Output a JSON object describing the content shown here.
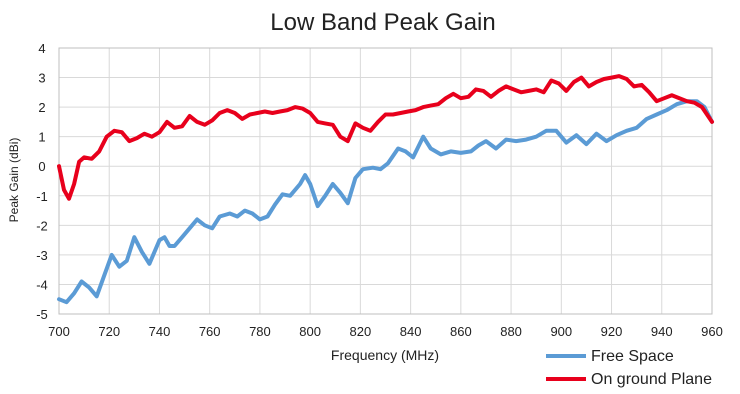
{
  "chart_data": {
    "type": "line",
    "title": "Low Band Peak Gain",
    "xlabel": "Frequency (MHz)",
    "ylabel": "Peak Gain (dBi)",
    "xlim": [
      700,
      960
    ],
    "ylim": [
      -5,
      4
    ],
    "x_ticks": [
      700,
      720,
      740,
      760,
      780,
      800,
      820,
      840,
      860,
      880,
      900,
      920,
      940,
      960
    ],
    "y_ticks": [
      4,
      3,
      2,
      1,
      0,
      -1,
      -2,
      -3,
      -4,
      -5
    ],
    "grid": true,
    "legend_position": "bottom-right",
    "series": [
      {
        "name": "Free Space",
        "color": "#5b9bd5",
        "x": [
          700,
          703,
          706,
          709,
          712,
          715,
          718,
          721,
          724,
          727,
          730,
          733,
          736,
          740,
          742,
          744,
          746,
          749,
          752,
          755,
          758,
          761,
          764,
          768,
          771,
          774,
          777,
          780,
          783,
          786,
          789,
          792,
          796,
          798,
          800,
          803,
          806,
          809,
          812,
          815,
          818,
          821,
          825,
          828,
          831,
          835,
          838,
          841,
          845,
          848,
          852,
          856,
          860,
          864,
          867,
          870,
          874,
          878,
          882,
          886,
          890,
          894,
          898,
          902,
          906,
          910,
          914,
          918,
          922,
          926,
          930,
          934,
          938,
          942,
          946,
          950,
          954,
          957,
          960
        ],
        "values": [
          -4.5,
          -4.6,
          -4.3,
          -3.9,
          -4.1,
          -4.4,
          -3.7,
          -3.0,
          -3.4,
          -3.2,
          -2.4,
          -2.9,
          -3.3,
          -2.5,
          -2.4,
          -2.7,
          -2.7,
          -2.4,
          -2.1,
          -1.8,
          -2.0,
          -2.1,
          -1.7,
          -1.6,
          -1.7,
          -1.5,
          -1.6,
          -1.8,
          -1.7,
          -1.3,
          -0.95,
          -1.0,
          -0.6,
          -0.3,
          -0.6,
          -1.35,
          -1.0,
          -0.6,
          -0.9,
          -1.25,
          -0.4,
          -0.1,
          -0.05,
          -0.1,
          0.1,
          0.6,
          0.5,
          0.3,
          1.0,
          0.6,
          0.4,
          0.5,
          0.45,
          0.5,
          0.7,
          0.85,
          0.6,
          0.9,
          0.85,
          0.9,
          1.0,
          1.2,
          1.2,
          0.8,
          1.05,
          0.75,
          1.1,
          0.85,
          1.05,
          1.2,
          1.3,
          1.6,
          1.75,
          1.9,
          2.1,
          2.2,
          2.2,
          2.0,
          1.5
        ]
      },
      {
        "name": "On ground Plane",
        "color": "#e8001c",
        "x": [
          700,
          702,
          704,
          706,
          708,
          710,
          713,
          716,
          719,
          722,
          725,
          728,
          731,
          734,
          737,
          740,
          743,
          746,
          749,
          752,
          755,
          758,
          761,
          764,
          767,
          770,
          773,
          776,
          779,
          782,
          785,
          788,
          791,
          794,
          797,
          800,
          803,
          806,
          809,
          812,
          815,
          818,
          821,
          824,
          827,
          830,
          833,
          836,
          839,
          842,
          845,
          848,
          851,
          854,
          857,
          860,
          863,
          866,
          869,
          872,
          875,
          878,
          881,
          884,
          887,
          890,
          893,
          896,
          899,
          902,
          905,
          908,
          911,
          914,
          917,
          920,
          923,
          926,
          929,
          932,
          935,
          938,
          941,
          944,
          947,
          950,
          953,
          956,
          960
        ],
        "values": [
          0.0,
          -0.8,
          -1.1,
          -0.6,
          0.15,
          0.3,
          0.25,
          0.5,
          1.0,
          1.2,
          1.15,
          0.85,
          0.95,
          1.1,
          1.0,
          1.15,
          1.5,
          1.3,
          1.35,
          1.7,
          1.5,
          1.4,
          1.55,
          1.8,
          1.9,
          1.8,
          1.6,
          1.75,
          1.8,
          1.85,
          1.8,
          1.85,
          1.9,
          2.0,
          1.95,
          1.8,
          1.5,
          1.45,
          1.4,
          1.0,
          0.85,
          1.45,
          1.3,
          1.2,
          1.5,
          1.75,
          1.75,
          1.8,
          1.85,
          1.9,
          2.0,
          2.05,
          2.1,
          2.3,
          2.45,
          2.3,
          2.35,
          2.6,
          2.55,
          2.35,
          2.55,
          2.7,
          2.6,
          2.5,
          2.55,
          2.6,
          2.5,
          2.9,
          2.8,
          2.55,
          2.85,
          3.0,
          2.7,
          2.85,
          2.95,
          3.0,
          3.05,
          2.95,
          2.7,
          2.75,
          2.5,
          2.2,
          2.3,
          2.4,
          2.3,
          2.2,
          2.15,
          2.0,
          1.5
        ]
      }
    ]
  }
}
